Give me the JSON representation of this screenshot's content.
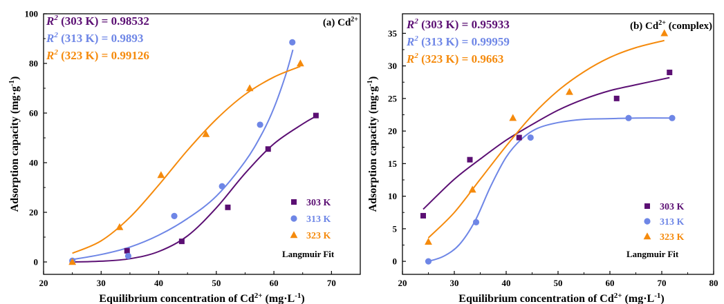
{
  "chart_data": [
    {
      "type": "scatter",
      "panel_label": "(a) Cd",
      "panel_label_sup": "2+",
      "xlabel": "Equilibrium concentration of  Cd",
      "xlabel_sup": "2+",
      "xlabel_unit": " (mg·L",
      "xlabel_unit_sup": "-1",
      "xlabel_unit_end": ")",
      "ylabel": "Adsorption capacity (mg·g",
      "ylabel_sup": "-1",
      "ylabel_end": ")",
      "xlim": [
        20,
        75
      ],
      "ylim": [
        -5,
        100
      ],
      "xticks": [
        20,
        30,
        40,
        50,
        60,
        70
      ],
      "yticks": [
        0,
        20,
        40,
        60,
        80,
        100
      ],
      "r2_labels": [
        {
          "prefix": "R",
          "sup": "2",
          "temp": " (303 K) = ",
          "value": "0.98532",
          "color": "#5b0f73"
        },
        {
          "prefix": "R",
          "sup": "2",
          "temp": " (313 K) = ",
          "value": "0.9893",
          "color": "#6e86e6"
        },
        {
          "prefix": "R",
          "sup": "2",
          "temp": " (323 K) = ",
          "value": "0.99126",
          "color": "#f58a0c"
        }
      ],
      "legend": {
        "placement": "bottom-right",
        "fit_label": "Langmuir Fit"
      },
      "series": [
        {
          "name": "303 K",
          "color": "#5b0f73",
          "marker": "square",
          "x": [
            25,
            34.5,
            44,
            52,
            59,
            67.3
          ],
          "y": [
            0,
            4.5,
            8.3,
            22,
            45.5,
            59
          ],
          "fit_x": [
            25,
            30,
            35,
            40,
            45,
            50,
            55,
            60,
            65,
            67.3
          ],
          "fit_y": [
            0,
            0.3,
            1.3,
            4.2,
            10.5,
            21.8,
            35.7,
            47.6,
            55.6,
            58.7
          ]
        },
        {
          "name": "313 K",
          "color": "#6e86e6",
          "marker": "circle",
          "x": [
            25,
            34.7,
            42.7,
            51,
            57.6,
            63.2
          ],
          "y": [
            0.5,
            2.4,
            18.5,
            30.5,
            55.3,
            88.5
          ],
          "fit_x": [
            25,
            30,
            35,
            40,
            45,
            50,
            55,
            58,
            60,
            62,
            63.3
          ],
          "fit_y": [
            1,
            3,
            6,
            10.8,
            17.5,
            26.5,
            40.5,
            52,
            62,
            75,
            85.5
          ]
        },
        {
          "name": "323 K",
          "color": "#f58a0c",
          "marker": "triangle",
          "x": [
            25,
            33.2,
            40.4,
            48.2,
            55.8,
            64.6
          ],
          "y": [
            0,
            14,
            35,
            51.5,
            70,
            80
          ],
          "fit_x": [
            25,
            30,
            35,
            40,
            45,
            50,
            55,
            60,
            64.6
          ],
          "fit_y": [
            3.5,
            8.5,
            18,
            31,
            45,
            57.5,
            67.5,
            74.5,
            78.8
          ]
        }
      ]
    },
    {
      "type": "scatter",
      "panel_label": "(b) Cd",
      "panel_label_sup": "2+",
      "panel_label_end": " (complex)",
      "xlabel": "Equilibrium concentration of  Cd",
      "xlabel_sup": "2+",
      "xlabel_unit": " (mg·L",
      "xlabel_unit_sup": "-1",
      "xlabel_unit_end": ")",
      "ylabel": "Adsorption capacity (mg·g",
      "ylabel_sup": "-1",
      "ylabel_end": ")",
      "xlim": [
        20,
        80
      ],
      "ylim": [
        -2,
        38
      ],
      "xticks": [
        20,
        30,
        40,
        50,
        60,
        70,
        80
      ],
      "yticks": [
        0,
        5,
        10,
        15,
        20,
        25,
        30,
        35
      ],
      "r2_labels": [
        {
          "prefix": "R",
          "sup": "2",
          "temp": " (303 K) = ",
          "value": "0.95933",
          "color": "#5b0f73"
        },
        {
          "prefix": "R",
          "sup": "2",
          "temp": " (313 K) = ",
          "value": "0.99959",
          "color": "#6e86e6"
        },
        {
          "prefix": "R",
          "sup": "2",
          "temp": " (323 K) = ",
          "value": "0.9663",
          "color": "#f58a0c"
        }
      ],
      "legend": {
        "placement": "bottom-right",
        "fit_label": "Langmuir Fit"
      },
      "series": [
        {
          "name": "303 K",
          "color": "#5b0f73",
          "marker": "square",
          "x": [
            24,
            33,
            42.5,
            61.3,
            71.5
          ],
          "y": [
            7,
            15.6,
            19,
            25,
            29
          ],
          "fit_x": [
            24,
            30,
            35,
            40,
            45,
            50,
            55,
            60,
            65,
            71.5
          ],
          "fit_y": [
            8,
            12.6,
            15.7,
            18.6,
            21,
            23.2,
            24.9,
            26.2,
            27.1,
            28.2
          ]
        },
        {
          "name": "313 K",
          "color": "#6e86e6",
          "marker": "circle",
          "x": [
            25,
            34.2,
            44.7,
            63.6,
            72
          ],
          "y": [
            0,
            6,
            19,
            22,
            22
          ],
          "fit_x": [
            25,
            28,
            31,
            34,
            37,
            40,
            43,
            46,
            50,
            55,
            60,
            65,
            72
          ],
          "fit_y": [
            0,
            0.8,
            2.6,
            6.2,
            11.5,
            16,
            18.8,
            20.4,
            21.3,
            21.8,
            21.9,
            22,
            22
          ]
        },
        {
          "name": "323 K",
          "color": "#f58a0c",
          "marker": "triangle",
          "x": [
            25,
            33.5,
            41.3,
            52.2,
            70.5
          ],
          "y": [
            3,
            11,
            22,
            26,
            35
          ],
          "fit_x": [
            25,
            30,
            35,
            40,
            45,
            50,
            55,
            60,
            65,
            70.5
          ],
          "fit_y": [
            3.6,
            7.5,
            12.6,
            17.7,
            22.4,
            26.2,
            29.1,
            31.3,
            32.8,
            33.9
          ]
        }
      ]
    }
  ]
}
